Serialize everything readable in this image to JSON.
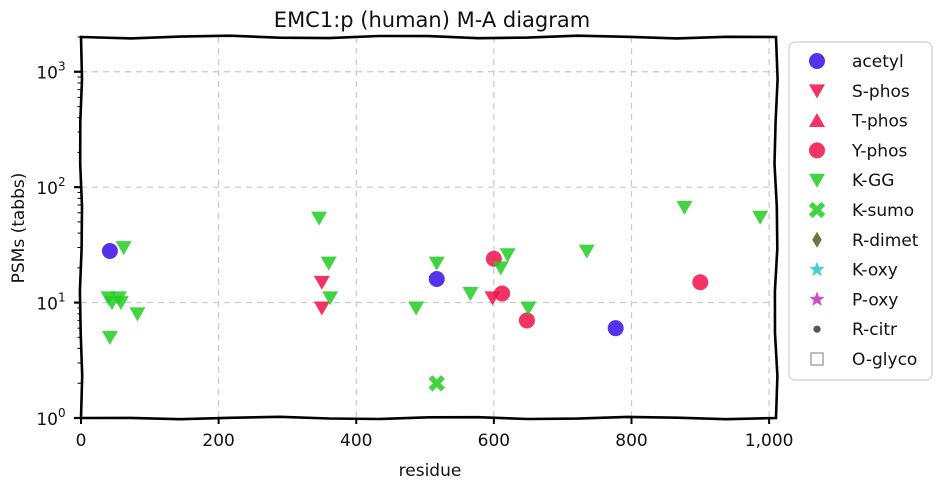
{
  "chart_data": {
    "type": "scatter",
    "title": "EMC1:p (human) M-A diagram",
    "xlabel": "residue",
    "ylabel": "PSMs (tabbs)",
    "xlim": [
      0,
      1010
    ],
    "ylim": [
      1,
      2000
    ],
    "yscale": "log",
    "x_ticks": [
      0,
      200,
      400,
      600,
      800,
      1000
    ],
    "x_tick_labels": [
      "0",
      "200",
      "400",
      "600",
      "800",
      "1,000"
    ],
    "y_ticks": [
      1,
      10,
      100,
      1000
    ],
    "y_tick_labels": [
      {
        "base": "10",
        "exp": "0"
      },
      {
        "base": "10",
        "exp": "1"
      },
      {
        "base": "10",
        "exp": "2"
      },
      {
        "base": "10",
        "exp": "3"
      }
    ],
    "grid": true,
    "legend_position": "outside-right",
    "series": [
      {
        "name": "acetyl",
        "marker": "circle",
        "color": "#3a0ee8",
        "points": [
          [
            42,
            28
          ],
          [
            517,
            16
          ],
          [
            777,
            6
          ]
        ]
      },
      {
        "name": "S-phos",
        "marker": "triangle-down",
        "color": "#f0104a",
        "points": [
          [
            350,
            15
          ],
          [
            350,
            9
          ],
          [
            598,
            11
          ]
        ]
      },
      {
        "name": "T-phos",
        "marker": "triangle-up",
        "color": "#f0104a",
        "points": []
      },
      {
        "name": "Y-phos",
        "marker": "circle",
        "color": "#f0104a",
        "points": [
          [
            600,
            24
          ],
          [
            648,
            7
          ],
          [
            900,
            15
          ],
          [
            612,
            12
          ]
        ]
      },
      {
        "name": "K-GG",
        "marker": "triangle-down",
        "color": "#22cc22",
        "points": [
          [
            40,
            11
          ],
          [
            45,
            10
          ],
          [
            42,
            5
          ],
          [
            55,
            11
          ],
          [
            58,
            10
          ],
          [
            62,
            30
          ],
          [
            82,
            8
          ],
          [
            346,
            54
          ],
          [
            360,
            22
          ],
          [
            362,
            11
          ],
          [
            487,
            9
          ],
          [
            517,
            22
          ],
          [
            566,
            12
          ],
          [
            610,
            20
          ],
          [
            620,
            26
          ],
          [
            650,
            9
          ],
          [
            735,
            28
          ],
          [
            877,
            67
          ],
          [
            987,
            55
          ]
        ]
      },
      {
        "name": "K-sumo",
        "marker": "x",
        "color": "#22cc22",
        "points": [
          [
            517,
            2
          ]
        ]
      },
      {
        "name": "R-dimet",
        "marker": "diamond",
        "color": "#5c5a1e",
        "points": []
      },
      {
        "name": "K-oxy",
        "marker": "star",
        "color": "#22c9c9",
        "points": []
      },
      {
        "name": "P-oxy",
        "marker": "star",
        "color": "#c42ec4",
        "points": []
      },
      {
        "name": "R-citr",
        "marker": "dot",
        "color": "#555555",
        "points": []
      },
      {
        "name": "O-glyco",
        "marker": "square-open",
        "color": "#999999",
        "points": []
      }
    ]
  }
}
